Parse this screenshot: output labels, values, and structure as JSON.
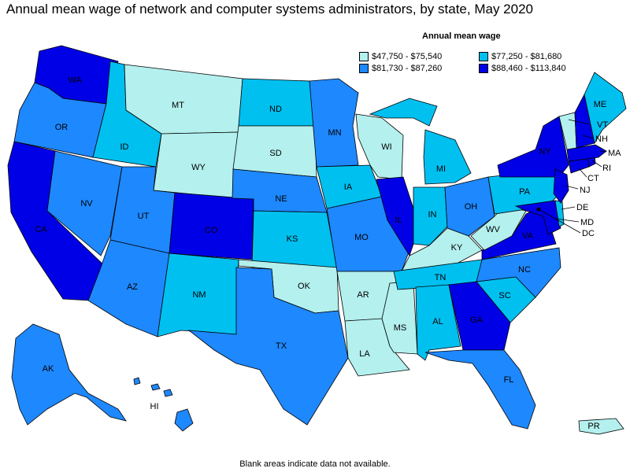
{
  "title": "Annual mean wage of network and computer systems administrators, by state, May 2020",
  "legend": {
    "title": "Annual mean wage",
    "items": [
      {
        "label": "$47,750 - $75,540",
        "color": "#b3f0ee"
      },
      {
        "label": "$77,250 - $81,680",
        "color": "#00c0f0"
      },
      {
        "label": "$81,730 - $87,260",
        "color": "#1e88ff"
      },
      {
        "label": "$88,460 - $113,840",
        "color": "#0000e6"
      }
    ]
  },
  "footnote": "Blank areas indicate data not available.",
  "states": [
    {
      "id": "WA",
      "label": "WA",
      "tier": 3
    },
    {
      "id": "OR",
      "label": "OR",
      "tier": 2
    },
    {
      "id": "CA",
      "label": "CA",
      "tier": 3
    },
    {
      "id": "NV",
      "label": "NV",
      "tier": 2
    },
    {
      "id": "ID",
      "label": "ID",
      "tier": 1
    },
    {
      "id": "MT",
      "label": "MT",
      "tier": 0
    },
    {
      "id": "WY",
      "label": "WY",
      "tier": 0
    },
    {
      "id": "UT",
      "label": "UT",
      "tier": 2
    },
    {
      "id": "AZ",
      "label": "AZ",
      "tier": 2
    },
    {
      "id": "CO",
      "label": "CO",
      "tier": 3
    },
    {
      "id": "NM",
      "label": "NM",
      "tier": 1
    },
    {
      "id": "ND",
      "label": "ND",
      "tier": 1
    },
    {
      "id": "SD",
      "label": "SD",
      "tier": 0
    },
    {
      "id": "NE",
      "label": "NE",
      "tier": 2
    },
    {
      "id": "KS",
      "label": "KS",
      "tier": 1
    },
    {
      "id": "OK",
      "label": "OK",
      "tier": 0
    },
    {
      "id": "TX",
      "label": "TX",
      "tier": 2
    },
    {
      "id": "MN",
      "label": "MN",
      "tier": 2
    },
    {
      "id": "IA",
      "label": "IA",
      "tier": 1
    },
    {
      "id": "MO",
      "label": "MO",
      "tier": 2
    },
    {
      "id": "AR",
      "label": "AR",
      "tier": 0
    },
    {
      "id": "LA",
      "label": "LA",
      "tier": 0
    },
    {
      "id": "WI",
      "label": "WI",
      "tier": 0
    },
    {
      "id": "IL",
      "label": "IL",
      "tier": 3
    },
    {
      "id": "MS",
      "label": "MS",
      "tier": 0
    },
    {
      "id": "MI",
      "label": "MI",
      "tier": 1
    },
    {
      "id": "IN",
      "label": "IN",
      "tier": 1
    },
    {
      "id": "OH",
      "label": "OH",
      "tier": 2
    },
    {
      "id": "KY",
      "label": "KY",
      "tier": 0
    },
    {
      "id": "TN",
      "label": "TN",
      "tier": 1
    },
    {
      "id": "AL",
      "label": "AL",
      "tier": 1
    },
    {
      "id": "GA",
      "label": "GA",
      "tier": 3
    },
    {
      "id": "FL",
      "label": "FL",
      "tier": 2
    },
    {
      "id": "SC",
      "label": "SC",
      "tier": 1
    },
    {
      "id": "NC",
      "label": "NC",
      "tier": 2
    },
    {
      "id": "VA",
      "label": "VA",
      "tier": 3
    },
    {
      "id": "WV",
      "label": "WV",
      "tier": 0
    },
    {
      "id": "PA",
      "label": "PA",
      "tier": 1
    },
    {
      "id": "NY",
      "label": "NY",
      "tier": 3
    },
    {
      "id": "ME",
      "label": "ME",
      "tier": 1
    },
    {
      "id": "VT",
      "label": "VT",
      "tier": 0
    },
    {
      "id": "NH",
      "label": "NH",
      "tier": 3
    },
    {
      "id": "MA",
      "label": "MA",
      "tier": 3
    },
    {
      "id": "RI",
      "label": "RI",
      "tier": 3
    },
    {
      "id": "CT",
      "label": "CT",
      "tier": 3
    },
    {
      "id": "NJ",
      "label": "NJ",
      "tier": 3
    },
    {
      "id": "DE",
      "label": "DE",
      "tier": 1
    },
    {
      "id": "MD",
      "label": "MD",
      "tier": 3
    },
    {
      "id": "DC",
      "label": "DC",
      "tier": 3
    },
    {
      "id": "AK",
      "label": "AK",
      "tier": 2
    },
    {
      "id": "HI",
      "label": "HI",
      "tier": 2
    },
    {
      "id": "PR",
      "label": "PR",
      "tier": 0
    }
  ]
}
